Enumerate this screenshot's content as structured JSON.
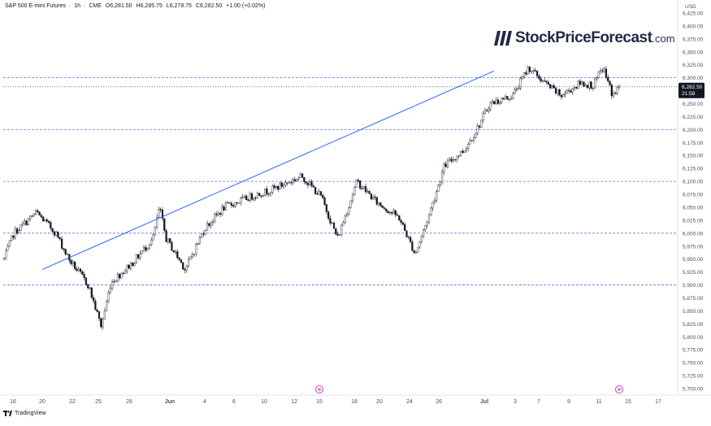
{
  "header": {
    "symbol": "S&P 500 E-mini Futures",
    "interval": "1h",
    "exchange": "CME",
    "open": "O6,281.50",
    "high": "H6,285.75",
    "low": "L6,279.75",
    "close": "C6,282.50",
    "change": "+1.00 (+0.02%)"
  },
  "brand": {
    "name": "StockPriceForecast",
    "tld": ".com"
  },
  "footer": {
    "label": "TradingView"
  },
  "colors": {
    "up": "#131722",
    "trend": "#2962ff",
    "level": "#5b7fd6",
    "axis": "#4a4f5c"
  },
  "chart_data": {
    "type": "candlestick",
    "currency": "USD",
    "ylim": [
      5687.5,
      6437.5
    ],
    "y_ticks": [
      "5,700.00",
      "5,725.00",
      "5,750.00",
      "5,775.00",
      "5,800.00",
      "5,825.00",
      "5,850.00",
      "5,875.00",
      "5,900.00",
      "5,925.00",
      "5,950.00",
      "5,975.00",
      "6,000.00",
      "6,025.00",
      "6,050.00",
      "6,075.00",
      "6,100.00",
      "6,125.00",
      "6,150.00",
      "6,175.00",
      "6,200.00",
      "6,225.00",
      "6,250.00",
      "6,275.00",
      "6,300.00",
      "6,325.00",
      "6,350.00",
      "6,375.00",
      "6,400.00",
      "6,425.00"
    ],
    "x_ticks": [
      "16",
      "20",
      "22",
      "25",
      "28",
      "Jun",
      "4",
      "6",
      "10",
      "12",
      "15",
      "18",
      "20",
      "24",
      "26",
      "Jul",
      "3",
      "7",
      "9",
      "11",
      "15",
      "17"
    ],
    "levels": [
      5900,
      6000,
      6100,
      6200,
      6300
    ],
    "last_price": {
      "value": 6282.5,
      "label": "6,282.50",
      "countdown": "21:58"
    },
    "trendline": {
      "from": {
        "x": "20",
        "y": 5930
      },
      "to": {
        "x": "Jul",
        "y": 6313
      }
    },
    "path_anchors": [
      [
        0,
        5950
      ],
      [
        0.3,
        6000
      ],
      [
        1.0,
        6040
      ],
      [
        1.6,
        6000
      ],
      [
        2.0,
        5950
      ],
      [
        2.6,
        5900
      ],
      [
        3.0,
        5820
      ],
      [
        3.3,
        5905
      ],
      [
        4.0,
        5945
      ],
      [
        4.6,
        5990
      ],
      [
        4.8,
        6050
      ],
      [
        5.0,
        5990
      ],
      [
        5.6,
        5930
      ],
      [
        6.2,
        6010
      ],
      [
        6.8,
        6050
      ],
      [
        7.6,
        6070
      ],
      [
        8.3,
        6085
      ],
      [
        9.2,
        6110
      ],
      [
        9.8,
        6070
      ],
      [
        10.3,
        5990
      ],
      [
        10.9,
        6100
      ],
      [
        11.5,
        6060
      ],
      [
        12.2,
        6030
      ],
      [
        12.7,
        5960
      ],
      [
        13.1,
        6030
      ],
      [
        13.6,
        6130
      ],
      [
        14.2,
        6160
      ],
      [
        14.6,
        6200
      ],
      [
        15.0,
        6250
      ],
      [
        15.7,
        6265
      ],
      [
        16.2,
        6320
      ],
      [
        16.7,
        6290
      ],
      [
        17.2,
        6265
      ],
      [
        17.8,
        6290
      ],
      [
        18.2,
        6285
      ],
      [
        18.5,
        6320
      ],
      [
        18.8,
        6265
      ],
      [
        19.0,
        6282.5
      ]
    ]
  }
}
